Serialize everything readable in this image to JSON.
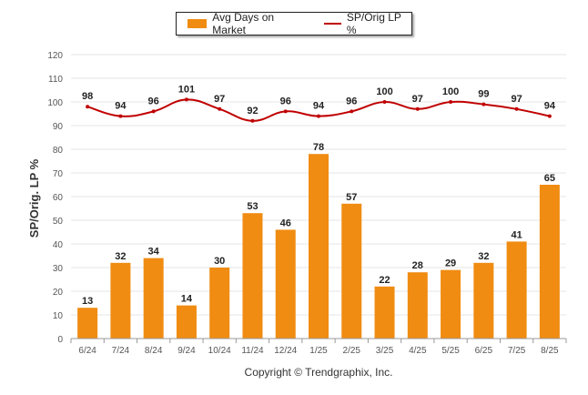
{
  "chart_data": {
    "type": "bar",
    "categories": [
      "6/24",
      "7/24",
      "8/24",
      "9/24",
      "10/24",
      "11/24",
      "12/24",
      "1/25",
      "2/25",
      "3/25",
      "4/25",
      "5/25",
      "6/25",
      "7/25",
      "8/25"
    ],
    "series": [
      {
        "name": "Avg Days on Market",
        "type": "bar",
        "color": "#f08c12",
        "values": [
          13,
          32,
          34,
          14,
          30,
          53,
          46,
          78,
          57,
          22,
          28,
          29,
          32,
          41,
          65
        ]
      },
      {
        "name": "SP/Orig LP %",
        "type": "line",
        "color": "#c00000",
        "values": [
          98,
          94,
          96,
          101,
          97,
          92,
          96,
          94,
          96,
          100,
          97,
          100,
          99,
          97,
          94
        ]
      }
    ],
    "ylabel": "SP/Orig. LP %",
    "ylim": [
      0,
      120
    ],
    "yticks": [
      0,
      10,
      20,
      30,
      40,
      50,
      60,
      70,
      80,
      90,
      100,
      110,
      120
    ],
    "grid": true,
    "legend_position": "top-center"
  },
  "footer": {
    "copyright": "Copyright © Trendgraphix, Inc."
  }
}
